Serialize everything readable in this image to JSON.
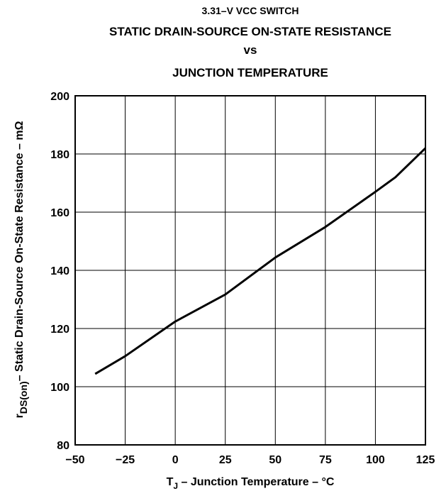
{
  "chart_data": {
    "type": "line",
    "title": [
      "3.31–V VCC SWITCH",
      "STATIC DRAIN-SOURCE ON-STATE RESISTANCE",
      "vs",
      "JUNCTION TEMPERATURE"
    ],
    "x_label": {
      "symbol": "T",
      "subscript": "J",
      "text": " – Junction Temperature – °C"
    },
    "y_label": {
      "symbol": "r",
      "subscript": "DS(on)",
      "text": "– Static Drain-Source On-State Resistance – mΩ"
    },
    "x": [
      -40,
      -25,
      0,
      25,
      50,
      75,
      100,
      110,
      125
    ],
    "series": [
      {
        "color": "#000000",
        "values": [
          104.4,
          110.5,
          122.4,
          131.7,
          144.4,
          154.9,
          167,
          172,
          182
        ]
      }
    ],
    "xlim": [
      -50,
      125
    ],
    "xticks": [
      {
        "value": -50,
        "label": "−50"
      },
      {
        "value": -25,
        "label": "−25"
      },
      0,
      25,
      50,
      75,
      100,
      125
    ],
    "ylim": [
      80,
      200
    ],
    "yticks": [
      80,
      100,
      120,
      140,
      160,
      180,
      200
    ],
    "grid": true
  }
}
